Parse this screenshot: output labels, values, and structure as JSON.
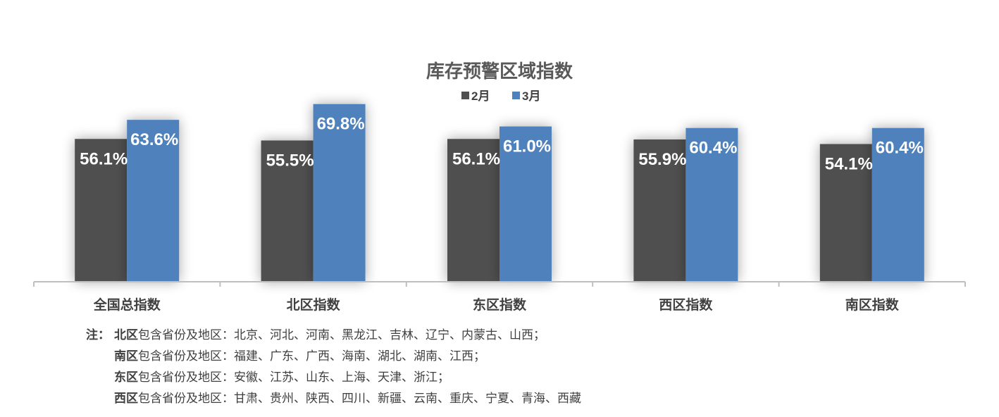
{
  "chart_data": {
    "type": "bar",
    "title": "库存预警区域指数",
    "categories": [
      "全国总指数",
      "北区指数",
      "东区指数",
      "西区指数",
      "南区指数"
    ],
    "series": [
      {
        "name": "2月",
        "values": [
          56.1,
          55.5,
          56.1,
          55.9,
          54.1
        ],
        "labels": [
          "56.1%",
          "55.5%",
          "56.1%",
          "55.9%",
          "54.1%"
        ]
      },
      {
        "name": "3月",
        "values": [
          63.6,
          69.8,
          61.0,
          60.4,
          60.4
        ],
        "labels": [
          "63.6%",
          "69.8%",
          "61.0%",
          "60.4%",
          "60.4%"
        ]
      }
    ],
    "legend": "top",
    "grid": false,
    "colors": [
      "#505050",
      "#4f81bd"
    ],
    "label_color": "#ffffff"
  },
  "notes": {
    "lead": "注：",
    "lines": [
      {
        "region": "北区",
        "text": "包含省份及地区：北京、河北、河南、黑龙江、吉林、辽宁、内蒙古、山西；"
      },
      {
        "region": "南区",
        "text": "包含省份及地区：福建、广东、广西、海南、湖北、湖南、江西；"
      },
      {
        "region": "东区",
        "text": "包含省份及地区：安徽、江苏、山东、上海、天津、浙江；"
      },
      {
        "region": "西区",
        "text": "包含省份及地区：甘肃、贵州、陕西、四川、新疆、云南、重庆、宁夏、青海、西藏"
      }
    ]
  }
}
